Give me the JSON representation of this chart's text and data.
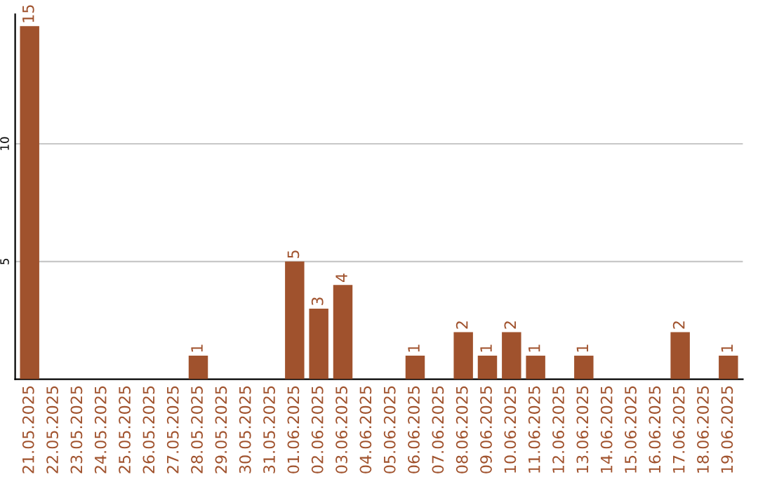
{
  "chart_data": {
    "type": "bar",
    "categories": [
      "21.05.2025",
      "22.05.2025",
      "23.05.2025",
      "24.05.2025",
      "25.05.2025",
      "26.05.2025",
      "27.05.2025",
      "28.05.2025",
      "29.05.2025",
      "30.05.2025",
      "31.05.2025",
      "01.06.2025",
      "02.06.2025",
      "03.06.2025",
      "04.06.2025",
      "05.06.2025",
      "06.06.2025",
      "07.06.2025",
      "08.06.2025",
      "09.06.2025",
      "10.06.2025",
      "11.06.2025",
      "12.06.2025",
      "13.06.2025",
      "14.06.2025",
      "15.06.2025",
      "16.06.2025",
      "17.06.2025",
      "18.06.2025",
      "19.06.2025"
    ],
    "series": [
      {
        "color": "#a0522d",
        "values": [
          15,
          0,
          0,
          0,
          0,
          0,
          0,
          1,
          0,
          0,
          0,
          5,
          3,
          4,
          0,
          0,
          1,
          0,
          2,
          1,
          2,
          1,
          0,
          1,
          0,
          0,
          0,
          2,
          0,
          1
        ],
        "value_labels": [
          "15",
          null,
          null,
          null,
          null,
          null,
          null,
          "1",
          null,
          null,
          null,
          "5",
          "3",
          "4",
          null,
          null,
          "1",
          null,
          "2",
          "1",
          "2",
          "1",
          null,
          "1",
          null,
          null,
          null,
          "2",
          null,
          "1"
        ]
      }
    ],
    "ylim": [
      0,
      15.5
    ],
    "yticks": [
      5,
      10
    ],
    "grid": "y",
    "legend": false
  }
}
